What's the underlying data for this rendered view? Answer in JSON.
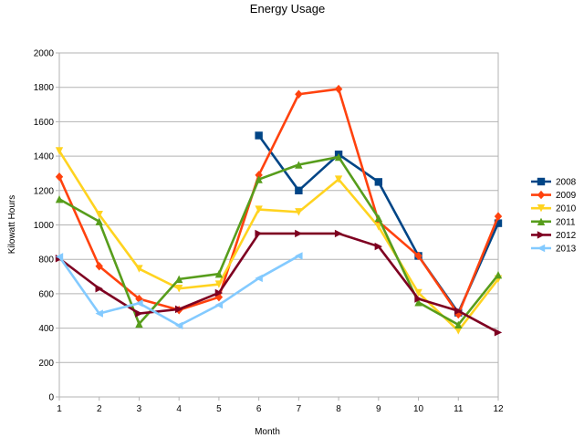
{
  "chart_data": {
    "type": "line",
    "title": "Energy Usage",
    "xlabel": "Month",
    "ylabel": "Kilowatt Hours",
    "x": [
      1,
      2,
      3,
      4,
      5,
      6,
      7,
      8,
      9,
      10,
      11,
      12
    ],
    "xlim": [
      1,
      12
    ],
    "ylim": [
      0,
      2000
    ],
    "yticks": [
      0,
      200,
      400,
      600,
      800,
      1000,
      1200,
      1400,
      1600,
      1800,
      2000
    ],
    "grid": "horizontal",
    "legend_position": "right",
    "series": [
      {
        "name": "2008",
        "color": "#004586",
        "marker": "square",
        "values": [
          null,
          null,
          null,
          null,
          null,
          1520,
          1200,
          1410,
          1250,
          820,
          490,
          1010
        ]
      },
      {
        "name": "2009",
        "color": "#ff420e",
        "marker": "diamond",
        "values": [
          1280,
          760,
          570,
          505,
          580,
          1290,
          1760,
          1790,
          1020,
          820,
          480,
          1050
        ]
      },
      {
        "name": "2010",
        "color": "#ffd320",
        "marker": "triangle-down",
        "values": [
          1430,
          1060,
          745,
          630,
          655,
          1090,
          1075,
          1265,
          990,
          605,
          385,
          685
        ]
      },
      {
        "name": "2011",
        "color": "#579d1c",
        "marker": "triangle-up",
        "values": [
          1150,
          1020,
          425,
          685,
          715,
          1265,
          1350,
          1395,
          1040,
          550,
          420,
          710
        ]
      },
      {
        "name": "2012",
        "color": "#7e0021",
        "marker": "triangle-right",
        "values": [
          805,
          630,
          485,
          510,
          605,
          950,
          950,
          950,
          875,
          570,
          500,
          375
        ]
      },
      {
        "name": "2013",
        "color": "#83caff",
        "marker": "triangle-left",
        "values": [
          815,
          485,
          545,
          415,
          535,
          690,
          820,
          null,
          null,
          null,
          null,
          null
        ]
      }
    ]
  }
}
